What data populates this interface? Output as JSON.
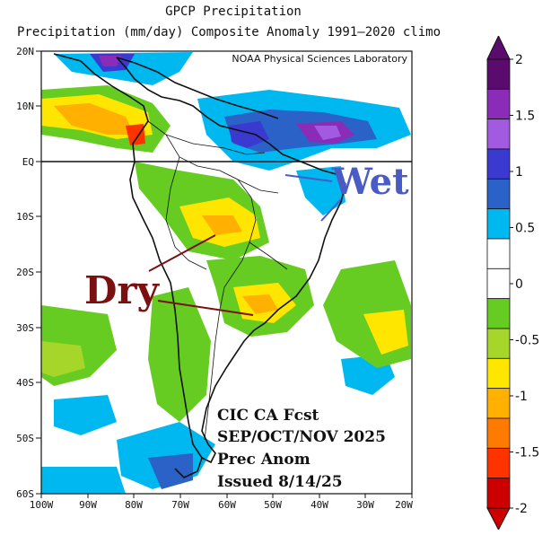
{
  "title": {
    "line1": "GPCP Precipitation",
    "line2": "Precipitation (mm/day) Composite Anomaly 1991–2020 climo"
  },
  "credit": "NOAA Physical Sciences Laboratory",
  "annotations": {
    "wet": "Wet",
    "dry": "Dry"
  },
  "forecast": {
    "line1": "CIC CA Fcst",
    "line2": "SEP/OCT/NOV 2025",
    "line3": "Prec Anom",
    "line4": "Issued 8/14/25"
  },
  "axes": {
    "lat_labels": [
      "20N",
      "10N",
      "EQ",
      "10S",
      "20S",
      "30S",
      "40S",
      "50S",
      "60S"
    ],
    "lon_labels": [
      "100W",
      "90W",
      "80W",
      "70W",
      "60W",
      "50W",
      "40W",
      "30W",
      "20W"
    ]
  },
  "colorbar": {
    "labels": [
      "2",
      "1.5",
      "1",
      "0.5",
      "0",
      "-0.5",
      "-1",
      "-1.5",
      "-2"
    ],
    "colors": [
      "#5b0a6e",
      "#8a2cb8",
      "#a25ae0",
      "#3a3ad0",
      "#2a62c8",
      "#00b8f0",
      "#ffffff",
      "#ffffff",
      "#66cc22",
      "#a6d629",
      "#ffe600",
      "#ffb000",
      "#ff7a00",
      "#ff3300",
      "#cc0000"
    ],
    "top_arrow_color": "#5b0a6e",
    "bottom_arrow_color": "#cc0000"
  },
  "colors": {
    "wet_accent": "#4a5cc4",
    "dry_accent": "#7a1010"
  }
}
